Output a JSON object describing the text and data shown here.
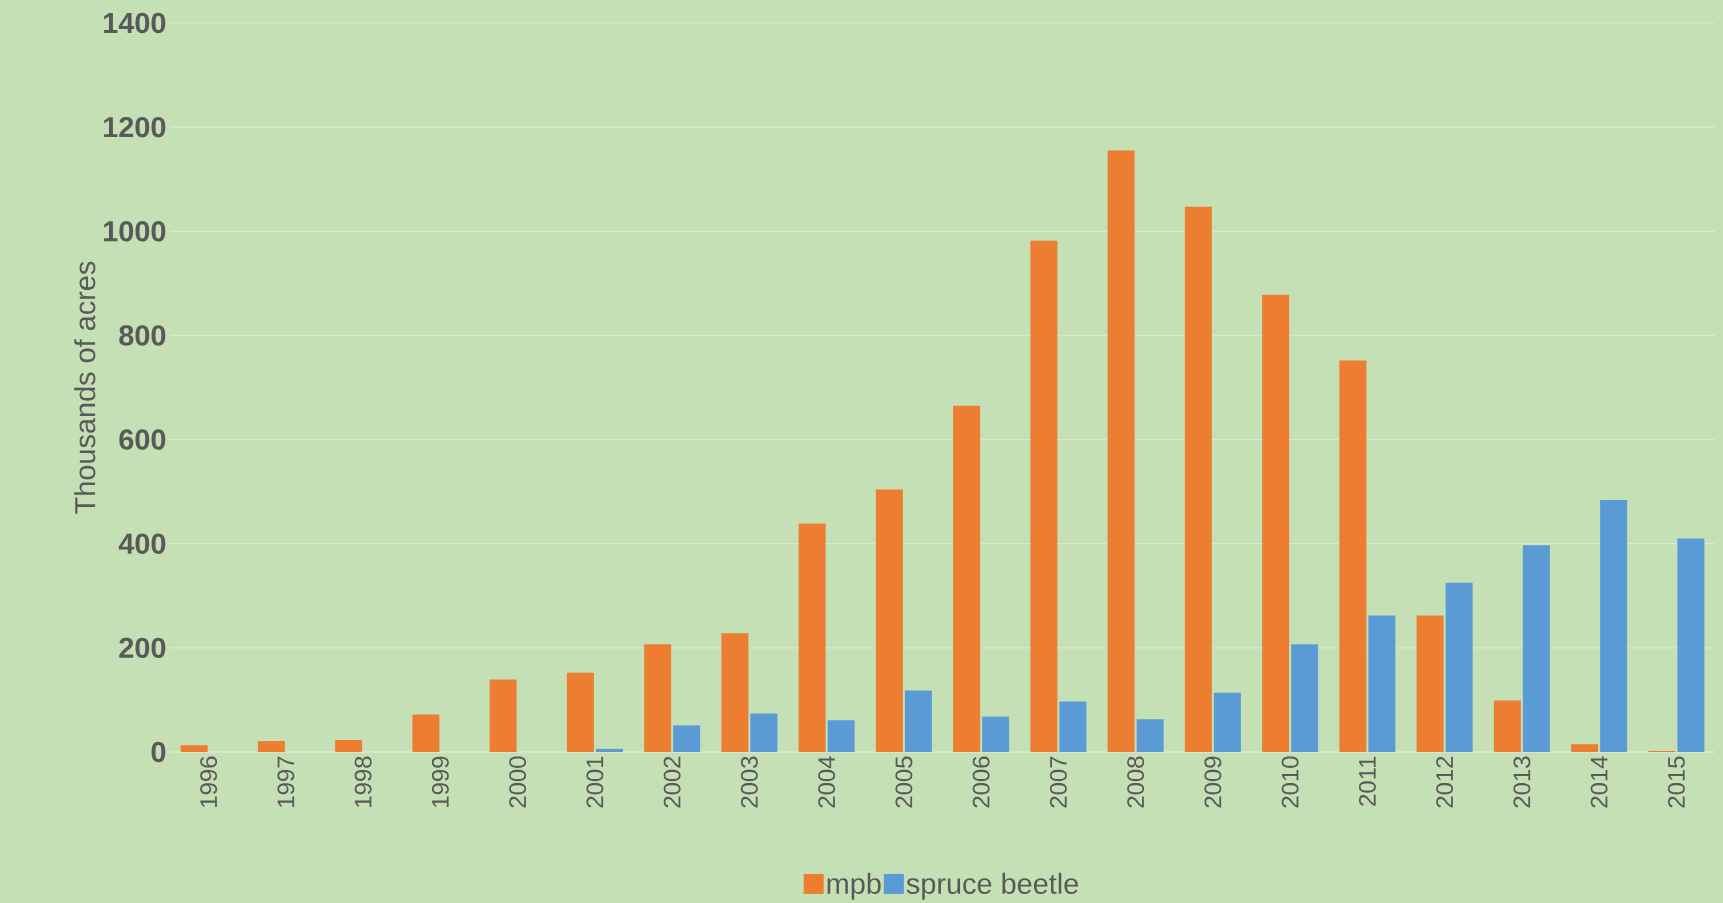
{
  "chart_data": {
    "type": "bar",
    "ylabel": "Thousands of acres",
    "categories": [
      "1996",
      "1997",
      "1998",
      "1999",
      "2000",
      "2001",
      "2002",
      "2003",
      "2004",
      "2005",
      "2006",
      "2007",
      "2008",
      "2009",
      "2010",
      "2011",
      "2012",
      "2013",
      "2014",
      "2015"
    ],
    "series": [
      {
        "name": "mpb",
        "color": "#ed7d31",
        "values": [
          13,
          21,
          23,
          72,
          139,
          152,
          207,
          228,
          439,
          504,
          665,
          982,
          1155,
          1047,
          878,
          752,
          262,
          99,
          15,
          2
        ]
      },
      {
        "name": "spruce beetle",
        "color": "#5b9bd5",
        "values": [
          0,
          0,
          0,
          0,
          0,
          6,
          51,
          74,
          61,
          118,
          68,
          97,
          63,
          114,
          207,
          262,
          325,
          397,
          484,
          410
        ]
      }
    ],
    "ylim": [
      0,
      1400
    ],
    "yticks": [
      0,
      200,
      400,
      600,
      800,
      1000,
      1200,
      1400
    ],
    "grid": "y",
    "legend": "bottom"
  }
}
